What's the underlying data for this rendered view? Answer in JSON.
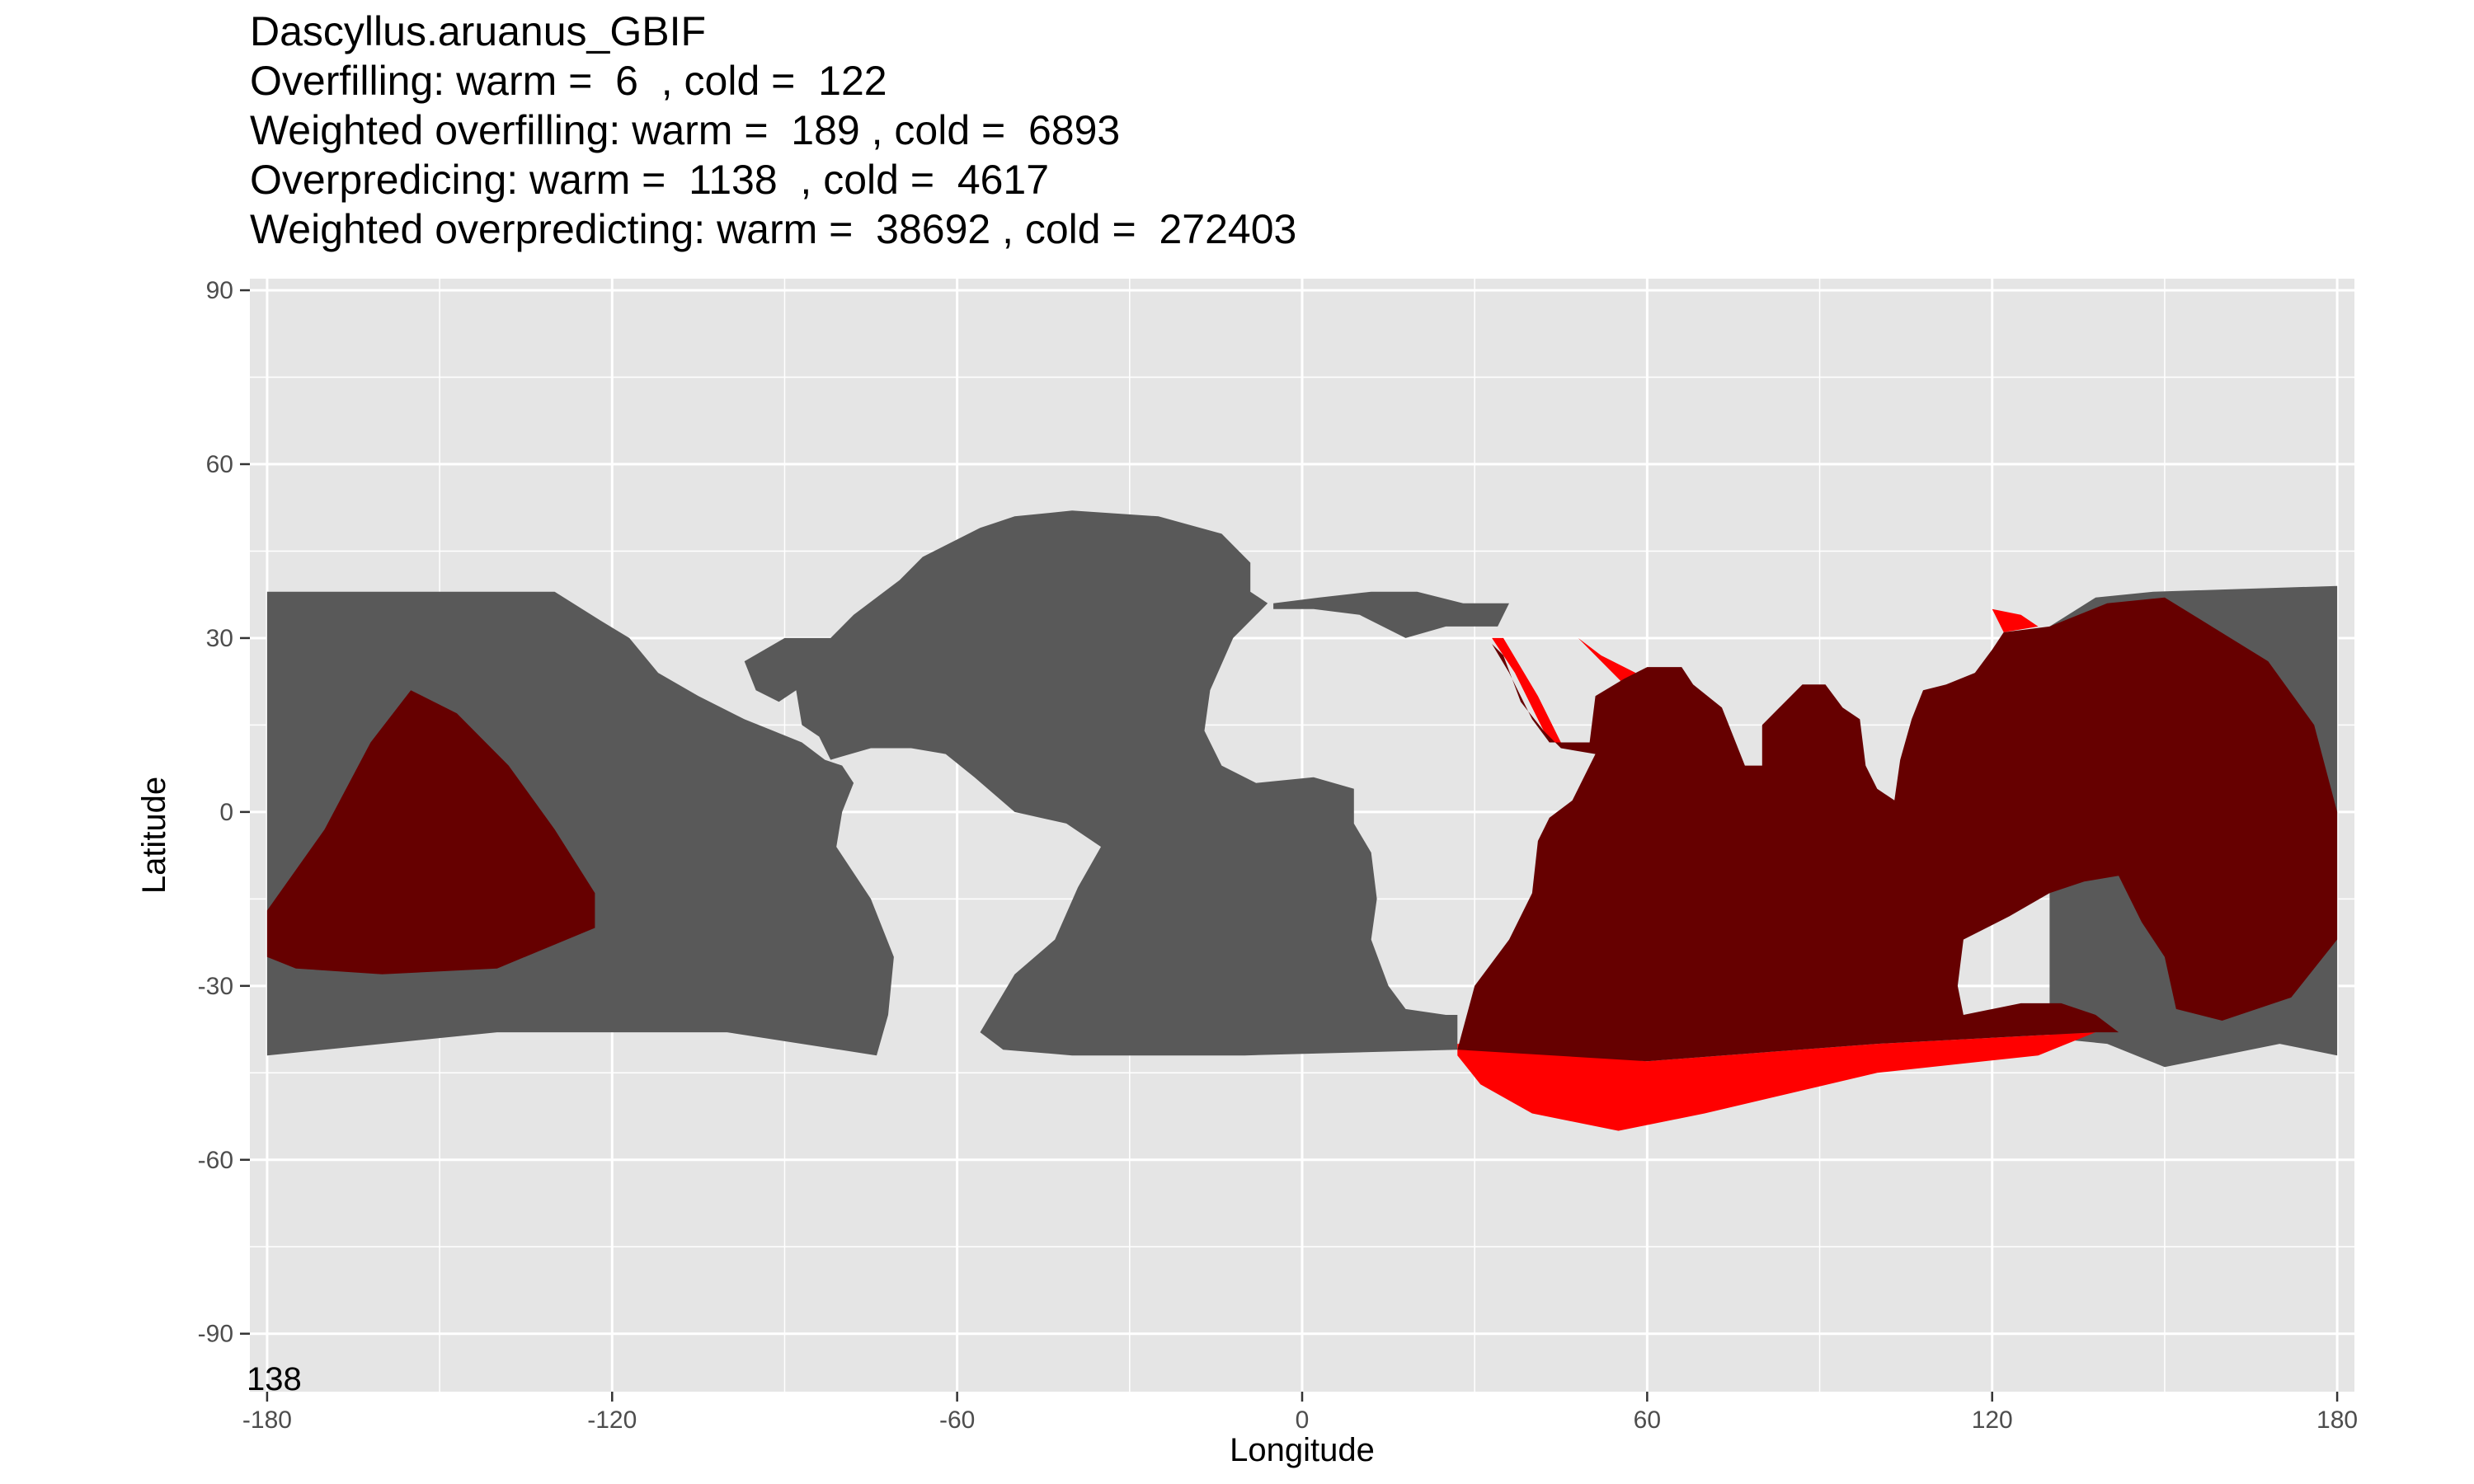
{
  "title_lines": [
    "Dascyllus.aruanus_GBIF",
    "Overfilling: warm =  6  , cold =  122",
    "Weighted overfilling: warm =  189 , cold =  6893",
    "Overpredicing: warm =  1138  , cold =  4617",
    "Weighted overpredicting: warm =  38692 , cold =  272403"
  ],
  "corner_label": "138",
  "colors": {
    "panel": "#e5e5e5",
    "grid": "#ffffff",
    "ocean_range": "#595959",
    "predicted_overlap": "#660000",
    "overpredicted": "#ff0000"
  },
  "chart_data": {
    "type": "heatmap",
    "xlabel": "Longitude",
    "ylabel": "Latitude",
    "xlim": [
      -183,
      183
    ],
    "ylim": [
      -100,
      92
    ],
    "xticks": [
      -180,
      -120,
      -60,
      0,
      60,
      120,
      180
    ],
    "yticks": [
      -90,
      -60,
      -30,
      0,
      30,
      60,
      90
    ],
    "layers": [
      {
        "role": "ocean_range",
        "polygons": [
          [
            [
              -180,
              38
            ],
            [
              -130,
              38
            ],
            [
              -122,
              33
            ],
            [
              -117,
              30
            ],
            [
              -112,
              24
            ],
            [
              -105,
              20
            ],
            [
              -97,
              16
            ],
            [
              -92,
              14
            ],
            [
              -87,
              12
            ],
            [
              -83,
              9
            ],
            [
              -80,
              8
            ],
            [
              -78,
              5
            ],
            [
              -80,
              0
            ],
            [
              -81,
              -6
            ],
            [
              -75,
              -15
            ],
            [
              -71,
              -25
            ],
            [
              -72,
              -35
            ],
            [
              -74,
              -42
            ],
            [
              -100,
              -38
            ],
            [
              -140,
              -38
            ],
            [
              -180,
              -42
            ]
          ],
          [
            [
              -82,
              30
            ],
            [
              -78,
              34
            ],
            [
              -70,
              40
            ],
            [
              -66,
              44
            ],
            [
              -62,
              46
            ],
            [
              -56,
              49
            ],
            [
              -50,
              51
            ],
            [
              -40,
              52
            ],
            [
              -25,
              51
            ],
            [
              -14,
              48
            ],
            [
              -9,
              43
            ],
            [
              -9,
              38
            ],
            [
              -6,
              36
            ],
            [
              -12,
              30
            ],
            [
              -16,
              21
            ],
            [
              -17,
              14
            ],
            [
              -14,
              8
            ],
            [
              -8,
              5
            ],
            [
              2,
              6
            ],
            [
              9,
              4
            ],
            [
              9,
              -2
            ],
            [
              12,
              -7
            ],
            [
              13,
              -15
            ],
            [
              12,
              -22
            ],
            [
              15,
              -30
            ],
            [
              18,
              -34
            ],
            [
              25,
              -35
            ],
            [
              27,
              -35
            ],
            [
              27,
              -41
            ],
            [
              -10,
              -42
            ],
            [
              -40,
              -42
            ],
            [
              -52,
              -41
            ],
            [
              -56,
              -38
            ],
            [
              -50,
              -28
            ],
            [
              -43,
              -22
            ],
            [
              -39,
              -13
            ],
            [
              -35,
              -6
            ],
            [
              -41,
              -2
            ],
            [
              -50,
              0
            ],
            [
              -57,
              6
            ],
            [
              -62,
              10
            ],
            [
              -68,
              11
            ],
            [
              -75,
              11
            ],
            [
              -82,
              9
            ],
            [
              -84,
              13
            ],
            [
              -87,
              15
            ],
            [
              -88,
              21
            ],
            [
              -91,
              19
            ],
            [
              -95,
              21
            ],
            [
              -97,
              26
            ],
            [
              -90,
              30
            ],
            [
              -84,
              30
            ]
          ],
          [
            [
              -5,
              36
            ],
            [
              3,
              37
            ],
            [
              12,
              38
            ],
            [
              20,
              38
            ],
            [
              28,
              36
            ],
            [
              36,
              36
            ],
            [
              34,
              32
            ],
            [
              25,
              32
            ],
            [
              18,
              30
            ],
            [
              10,
              34
            ],
            [
              2,
              35
            ],
            [
              -5,
              35
            ]
          ],
          [
            [
              130,
              32
            ],
            [
              138,
              37
            ],
            [
              148,
              38
            ],
            [
              180,
              39
            ],
            [
              180,
              -42
            ],
            [
              170,
              -40
            ],
            [
              150,
              -44
            ],
            [
              140,
              -40
            ],
            [
              130,
              -39
            ],
            [
              130,
              32
            ]
          ]
        ]
      },
      {
        "role": "overpredicted",
        "polygons": [
          [
            [
              27,
              -40
            ],
            [
              60,
              -43
            ],
            [
              100,
              -40
            ],
            [
              138,
              -38
            ],
            [
              128,
              -42
            ],
            [
              100,
              -45
            ],
            [
              70,
              -52
            ],
            [
              55,
              -55
            ],
            [
              40,
              -52
            ],
            [
              31,
              -47
            ],
            [
              27,
              -42
            ]
          ],
          [
            [
              33,
              30
            ],
            [
              37,
              24
            ],
            [
              43,
              12
            ],
            [
              45,
              12
            ],
            [
              41,
              20
            ],
            [
              35,
              30
            ]
          ],
          [
            [
              48,
              30
            ],
            [
              52,
              27
            ],
            [
              58,
              24
            ],
            [
              56,
              22
            ],
            [
              50,
              28
            ]
          ],
          [
            [
              120,
              35
            ],
            [
              125,
              34
            ],
            [
              128,
              32
            ],
            [
              122,
              31
            ]
          ]
        ]
      },
      {
        "role": "predicted_overlap",
        "polygons": [
          [
            [
              -155,
              21
            ],
            [
              -147,
              17
            ],
            [
              -138,
              8
            ],
            [
              -130,
              -3
            ],
            [
              -123,
              -14
            ],
            [
              -123,
              -20
            ],
            [
              -140,
              -27
            ],
            [
              -160,
              -28
            ],
            [
              -175,
              -27
            ],
            [
              -180,
              -25
            ],
            [
              -180,
              -17
            ],
            [
              -170,
              -3
            ],
            [
              -162,
              12
            ]
          ],
          [
            [
              33,
              29
            ],
            [
              36,
              24
            ],
            [
              40,
              16
            ],
            [
              43,
              12
            ],
            [
              50,
              12
            ],
            [
              51,
              20
            ],
            [
              56,
              23
            ],
            [
              60,
              25
            ],
            [
              66,
              25
            ],
            [
              68,
              22
            ],
            [
              73,
              18
            ],
            [
              77,
              8
            ],
            [
              80,
              8
            ],
            [
              80,
              15
            ],
            [
              83,
              18
            ],
            [
              87,
              22
            ],
            [
              91,
              22
            ],
            [
              94,
              18
            ],
            [
              97,
              16
            ],
            [
              98,
              8
            ],
            [
              100,
              4
            ],
            [
              103,
              2
            ],
            [
              104,
              9
            ],
            [
              106,
              16
            ],
            [
              108,
              21
            ],
            [
              112,
              22
            ],
            [
              117,
              24
            ],
            [
              120,
              28
            ],
            [
              122,
              31
            ],
            [
              130,
              32
            ],
            [
              140,
              36
            ],
            [
              150,
              37
            ],
            [
              168,
              26
            ],
            [
              176,
              15
            ],
            [
              180,
              0
            ],
            [
              180,
              -22
            ],
            [
              172,
              -32
            ],
            [
              160,
              -36
            ],
            [
              152,
              -34
            ],
            [
              150,
              -25
            ],
            [
              146,
              -19
            ],
            [
              142,
              -11
            ],
            [
              136,
              -12
            ],
            [
              130,
              -14
            ],
            [
              123,
              -18
            ],
            [
              115,
              -22
            ],
            [
              114,
              -30
            ],
            [
              115,
              -35
            ],
            [
              125,
              -33
            ],
            [
              132,
              -33
            ],
            [
              138,
              -35
            ],
            [
              142,
              -38
            ],
            [
              138,
              -38
            ],
            [
              100,
              -40
            ],
            [
              60,
              -43
            ],
            [
              27,
              -41
            ],
            [
              30,
              -30
            ],
            [
              36,
              -22
            ],
            [
              40,
              -14
            ],
            [
              41,
              -5
            ],
            [
              43,
              -1
            ],
            [
              47,
              2
            ],
            [
              51,
              10
            ],
            [
              45,
              11
            ],
            [
              42,
              14
            ],
            [
              38,
              19
            ],
            [
              35,
              27
            ]
          ]
        ]
      }
    ]
  }
}
